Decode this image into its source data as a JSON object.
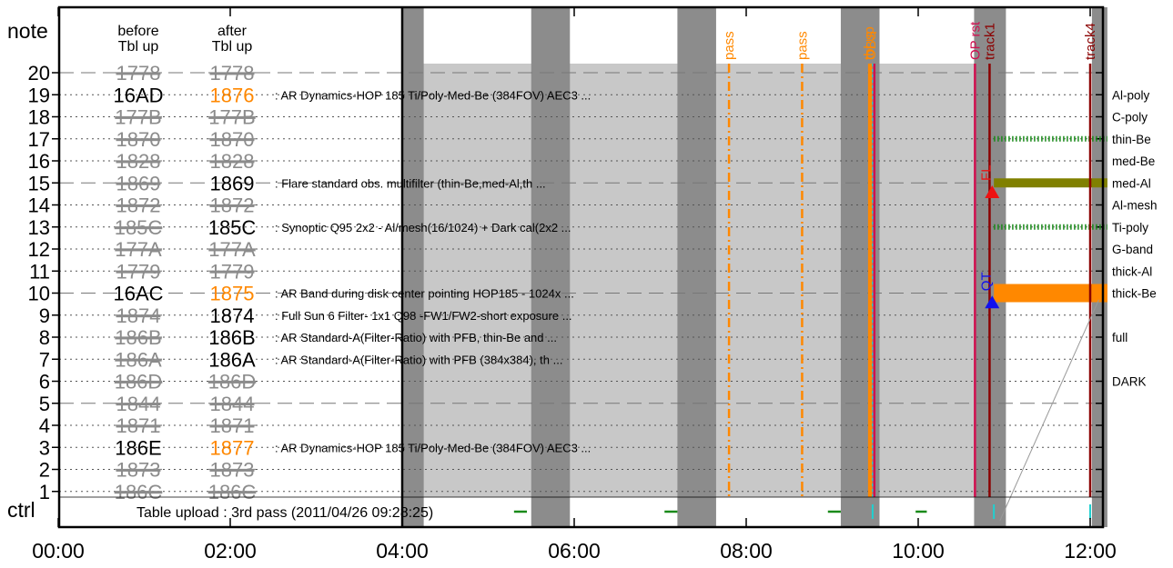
{
  "chart_data": {
    "type": "timeline",
    "x_range": [
      "00:00",
      "12:10"
    ],
    "x_ticks": [
      "00:00",
      "02:00",
      "04:00",
      "06:00",
      "08:00",
      "10:00",
      "12:00"
    ],
    "y_label_top": "note",
    "y_label_bottom": "ctrl",
    "y_ticks": [
      20,
      19,
      18,
      17,
      16,
      15,
      14,
      13,
      12,
      11,
      10,
      9,
      8,
      7,
      6,
      5,
      4,
      3,
      2,
      1
    ],
    "col_header_before": [
      "before",
      "Tbl up"
    ],
    "col_header_after": [
      "after",
      "Tbl up"
    ],
    "rows": [
      {
        "n": 20,
        "before": "1778",
        "after": "1778",
        "before_struck": true,
        "after_struck": true,
        "after_color": "gray",
        "desc": "",
        "filter": ""
      },
      {
        "n": 19,
        "before": "16AD",
        "after": "1876",
        "before_struck": false,
        "after_struck": false,
        "after_color": "orange",
        "desc": ": AR  Dynamics-HOP 185 Ti/Poly-Med-Be (384FOV) AEC3  ...",
        "filter": "Al-poly"
      },
      {
        "n": 18,
        "before": "177B",
        "after": "177B",
        "before_struck": true,
        "after_struck": true,
        "after_color": "gray",
        "desc": "",
        "filter": "C-poly"
      },
      {
        "n": 17,
        "before": "1870",
        "after": "1870",
        "before_struck": true,
        "after_struck": true,
        "after_color": "gray",
        "desc": "",
        "filter": "thin-Be"
      },
      {
        "n": 16,
        "before": "1828",
        "after": "1828",
        "before_struck": true,
        "after_struck": true,
        "after_color": "gray",
        "desc": "",
        "filter": "med-Be"
      },
      {
        "n": 15,
        "before": "1869",
        "after": "1869",
        "before_struck": true,
        "after_struck": false,
        "after_color": "black",
        "desc": ": Flare standard obs. multifilter (thin-Be,med-Al,th ...",
        "filter": "med-Al"
      },
      {
        "n": 14,
        "before": "1872",
        "after": "1872",
        "before_struck": true,
        "after_struck": true,
        "after_color": "gray",
        "desc": "",
        "filter": "Al-mesh"
      },
      {
        "n": 13,
        "before": "185C",
        "after": "185C",
        "before_struck": true,
        "after_struck": false,
        "after_color": "black",
        "desc": ": Synoptic Q95 2x2 - Al/mesh(16/1024) + Dark cal(2x2 ...",
        "filter": "Ti-poly"
      },
      {
        "n": 12,
        "before": "177A",
        "after": "177A",
        "before_struck": true,
        "after_struck": true,
        "after_color": "gray",
        "desc": "",
        "filter": "G-band"
      },
      {
        "n": 11,
        "before": "1779",
        "after": "1779",
        "before_struck": true,
        "after_struck": true,
        "after_color": "gray",
        "desc": "",
        "filter": "thick-Al"
      },
      {
        "n": 10,
        "before": "16AC",
        "after": "1875",
        "before_struck": false,
        "after_struck": false,
        "after_color": "orange",
        "desc": ": AR Band during disk center pointing HOP185 - 1024x ...",
        "filter": "thick-Be"
      },
      {
        "n": 9,
        "before": "1874",
        "after": "1874",
        "before_struck": true,
        "after_struck": false,
        "after_color": "black",
        "desc": ": Full Sun 6 Filter- 1x1 Q98 -FW1/FW2-short exposure ...",
        "filter": ""
      },
      {
        "n": 8,
        "before": "186B",
        "after": "186B",
        "before_struck": true,
        "after_struck": false,
        "after_color": "black",
        "desc": ": AR Standard-A(Filter-Ratio) with PFB, thin-Be and  ...",
        "filter": "full"
      },
      {
        "n": 7,
        "before": "186A",
        "after": "186A",
        "before_struck": true,
        "after_struck": false,
        "after_color": "black",
        "desc": ": AR Standard-A(Filter-Ratio) with PFB (384x384), th ...",
        "filter": ""
      },
      {
        "n": 6,
        "before": "186D",
        "after": "186D",
        "before_struck": true,
        "after_struck": true,
        "after_color": "gray",
        "desc": "",
        "filter": "DARK"
      },
      {
        "n": 5,
        "before": "1844",
        "after": "1844",
        "before_struck": true,
        "after_struck": true,
        "after_color": "gray",
        "desc": "",
        "filter": ""
      },
      {
        "n": 4,
        "before": "1871",
        "after": "1871",
        "before_struck": true,
        "after_struck": true,
        "after_color": "gray",
        "desc": "",
        "filter": ""
      },
      {
        "n": 3,
        "before": "186E",
        "after": "1877",
        "before_struck": false,
        "after_struck": false,
        "after_color": "orange",
        "desc": ": AR  Dynamics-HOP 185 Ti/Poly-Med-Be (384FOV) AEC3  ...",
        "filter": ""
      },
      {
        "n": 2,
        "before": "1873",
        "after": "1873",
        "before_struck": true,
        "after_struck": true,
        "after_color": "gray",
        "desc": "",
        "filter": ""
      },
      {
        "n": 1,
        "before": "186C",
        "after": "186C",
        "before_struck": true,
        "after_struck": true,
        "after_color": "gray",
        "desc": "",
        "filter": ""
      }
    ],
    "ctrl_text": "Table upload : 3rd pass (2011/04/26 09:28:25)",
    "night_bands_hours": [
      [
        4.0,
        4.25
      ],
      [
        5.5,
        5.95
      ],
      [
        7.2,
        7.65
      ],
      [
        9.1,
        9.55
      ],
      [
        10.65,
        11.02
      ],
      [
        12.02,
        12.2
      ]
    ],
    "observation_block_hours": [
      4.0,
      10.95
    ],
    "pass_events": [
      {
        "label": "pass",
        "hour": 7.8
      },
      {
        "label": "pass",
        "hour": 8.65
      }
    ],
    "event_lines": [
      {
        "label": "tbl up",
        "hour": 9.43,
        "color": "orange",
        "style": "solid"
      },
      {
        "label": "OBS",
        "hour": 9.45,
        "color": "orange",
        "style": "solid"
      },
      {
        "label": "",
        "hour": 9.47,
        "color": "cyan",
        "style": "dotted"
      },
      {
        "label": "",
        "hour": 9.49,
        "color": "crimson",
        "style": "solid"
      },
      {
        "label": "OP rst",
        "hour": 10.66,
        "color": "crimson",
        "style": "solid"
      },
      {
        "label": "track1",
        "hour": 10.83,
        "color": "darkred",
        "style": "solid"
      },
      {
        "label": "track4",
        "hour": 12.0,
        "color": "darkred",
        "style": "solid"
      }
    ],
    "markers": [
      {
        "label": "FL",
        "hour": 10.86,
        "row": 14.6,
        "color": "red",
        "shape": "triangle-up"
      },
      {
        "label": "QT",
        "hour": 10.86,
        "row": 9.6,
        "color": "blue",
        "shape": "triangle-up"
      }
    ],
    "filter_bars": [
      {
        "row": 17,
        "start": 10.88,
        "end": 12.2,
        "color": "green",
        "style": "hatched"
      },
      {
        "row": 15,
        "start": 10.88,
        "end": 12.2,
        "color": "olive",
        "style": "solid"
      },
      {
        "row": 13,
        "start": 10.88,
        "end": 12.2,
        "color": "green",
        "style": "hatched"
      },
      {
        "row": 10,
        "start": 10.88,
        "end": 12.2,
        "color": "orange",
        "style": "solid"
      }
    ],
    "ctrl_segments": [
      {
        "start": 5.3,
        "end": 5.45,
        "color": "green"
      },
      {
        "start": 7.05,
        "end": 7.2,
        "color": "green"
      },
      {
        "start": 8.95,
        "end": 9.1,
        "color": "green"
      },
      {
        "start": 9.97,
        "end": 10.1,
        "color": "green"
      }
    ],
    "colors": {
      "night": "#8c8c8c",
      "block": "#c8c8c8",
      "orange": "#ff8800",
      "darkred": "#8b0000",
      "crimson": "#d01050",
      "green": "#1a8a1a",
      "olive": "#808000",
      "cyan": "#20d0d0",
      "gray_text": "#8c8c8c"
    }
  }
}
